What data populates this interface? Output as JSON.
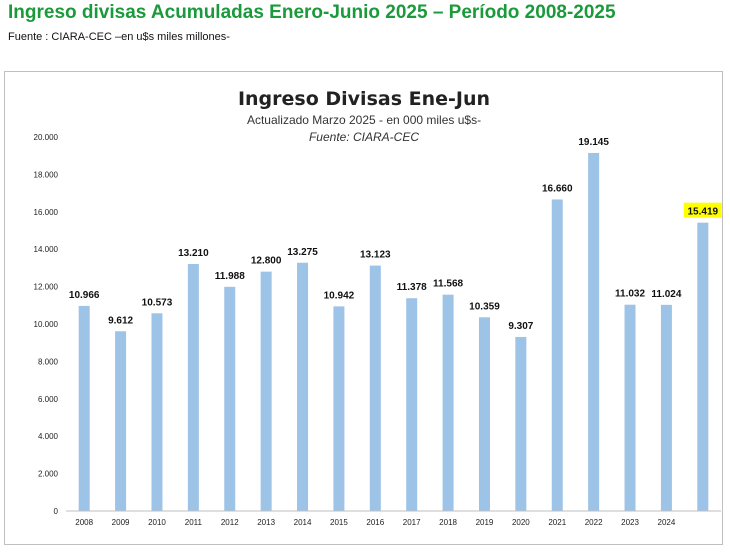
{
  "header": {
    "title": "Ingreso divisas Acumuladas Enero-Junio 2025 – Período 2008-2025",
    "source_note": "Fuente : CIARA-CEC –en u$s miles millones-"
  },
  "colors": {
    "title_green": "#1a9a3a",
    "bar": "#9dc3e6",
    "highlight": "#ffff00"
  },
  "chart_data": {
    "type": "bar",
    "title": "Ingreso Divisas Ene-Jun",
    "subtitle": "Actualizado Marzo 2025 - en 000  miles u$s-",
    "source": "Fuente: CIARA-CEC",
    "xlabel": "",
    "ylabel": "",
    "ylim": [
      0,
      20000
    ],
    "yticks": [
      0,
      2000,
      4000,
      6000,
      8000,
      10000,
      12000,
      14000,
      16000,
      18000,
      20000
    ],
    "ytick_labels": [
      "0",
      "2.000",
      "4.000",
      "6.000",
      "8.000",
      "10.000",
      "12.000",
      "14.000",
      "16.000",
      "18.000",
      "20.000"
    ],
    "categories": [
      "2008",
      "2009",
      "2010",
      "2011",
      "2012",
      "2013",
      "2014",
      "2015",
      "2016",
      "2017",
      "2018",
      "2019",
      "2020",
      "2021",
      "2022",
      "2023",
      "2024",
      ""
    ],
    "values": [
      10966,
      9612,
      10573,
      13210,
      11988,
      12800,
      13275,
      10942,
      13123,
      11378,
      11568,
      10359,
      9307,
      16660,
      19145,
      11032,
      11024,
      15419
    ],
    "value_labels": [
      "10.966",
      "9.612",
      "10.573",
      "13.210",
      "11.988",
      "12.800",
      "13.275",
      "10.942",
      "13.123",
      "11.378",
      "11.568",
      "10.359",
      "9.307",
      "16.660",
      "19.145",
      "11.032",
      "11.024",
      "15.419"
    ],
    "highlighted_index": 17,
    "grid": false,
    "legend": "none"
  }
}
